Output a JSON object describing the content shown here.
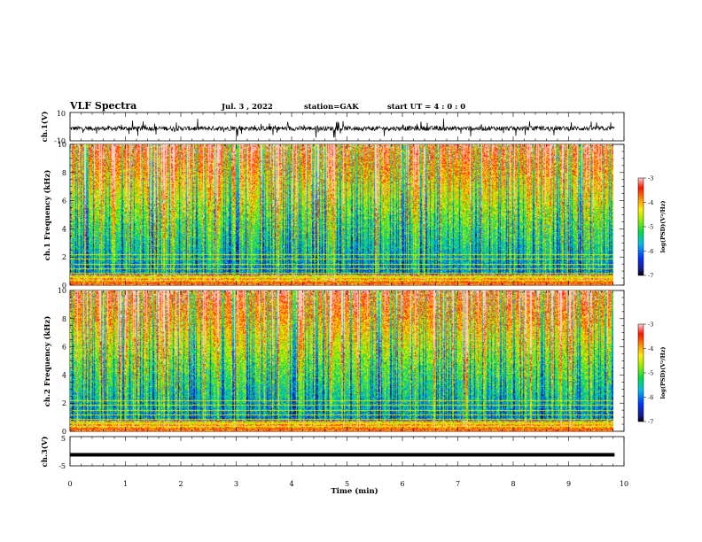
{
  "header": {
    "title": "VLF Spectra",
    "date": "Jul. 3 , 2022",
    "station": "station=GAK",
    "start": "start UT =  4 : 0 : 0"
  },
  "chart_data": [
    {
      "type": "line",
      "name": "ch1-waveform",
      "ylabel": "ch.1(V)",
      "yticks": [
        "10",
        "-10"
      ],
      "ylim": [
        -10,
        10
      ],
      "xlim": [
        0,
        10
      ],
      "data_end_min": 9.83
    },
    {
      "type": "heatmap",
      "name": "ch1-spectrogram",
      "ylabel": "ch.1 Frequency (kHz)",
      "yticks": [
        "0",
        "2",
        "4",
        "6",
        "8",
        "10"
      ],
      "ylim": [
        0,
        10
      ],
      "xlim": [
        0,
        10
      ],
      "colorbar": {
        "label": "log(PSD)(V²/Hz)",
        "ticks": [
          "-3",
          "-4",
          "-5",
          "-6",
          "-7"
        ],
        "range": [
          -7,
          -3
        ]
      }
    },
    {
      "type": "heatmap",
      "name": "ch2-spectrogram",
      "ylabel": "ch.2 Frequency (kHz)",
      "yticks": [
        "0",
        "2",
        "4",
        "6",
        "8",
        "10"
      ],
      "ylim": [
        0,
        10
      ],
      "xlim": [
        0,
        10
      ],
      "colorbar": {
        "label": "log(PSD)(V²/Hz)",
        "ticks": [
          "-3",
          "-4",
          "-5",
          "-6",
          "-7"
        ],
        "range": [
          -7,
          -3
        ]
      }
    },
    {
      "type": "line",
      "name": "ch3-waveform",
      "ylabel": "ch.3(V)",
      "yticks": [
        "5",
        "-5"
      ],
      "ylim": [
        -5,
        5
      ],
      "constant_value": -1.2,
      "xlim": [
        0,
        10
      ]
    }
  ],
  "xaxis": {
    "label": "Time (min)",
    "ticks": [
      "0",
      "1",
      "2",
      "3",
      "4",
      "5",
      "6",
      "7",
      "8",
      "9",
      "10"
    ]
  },
  "colors": {
    "ink": "#000000",
    "background": "#ffffff"
  }
}
